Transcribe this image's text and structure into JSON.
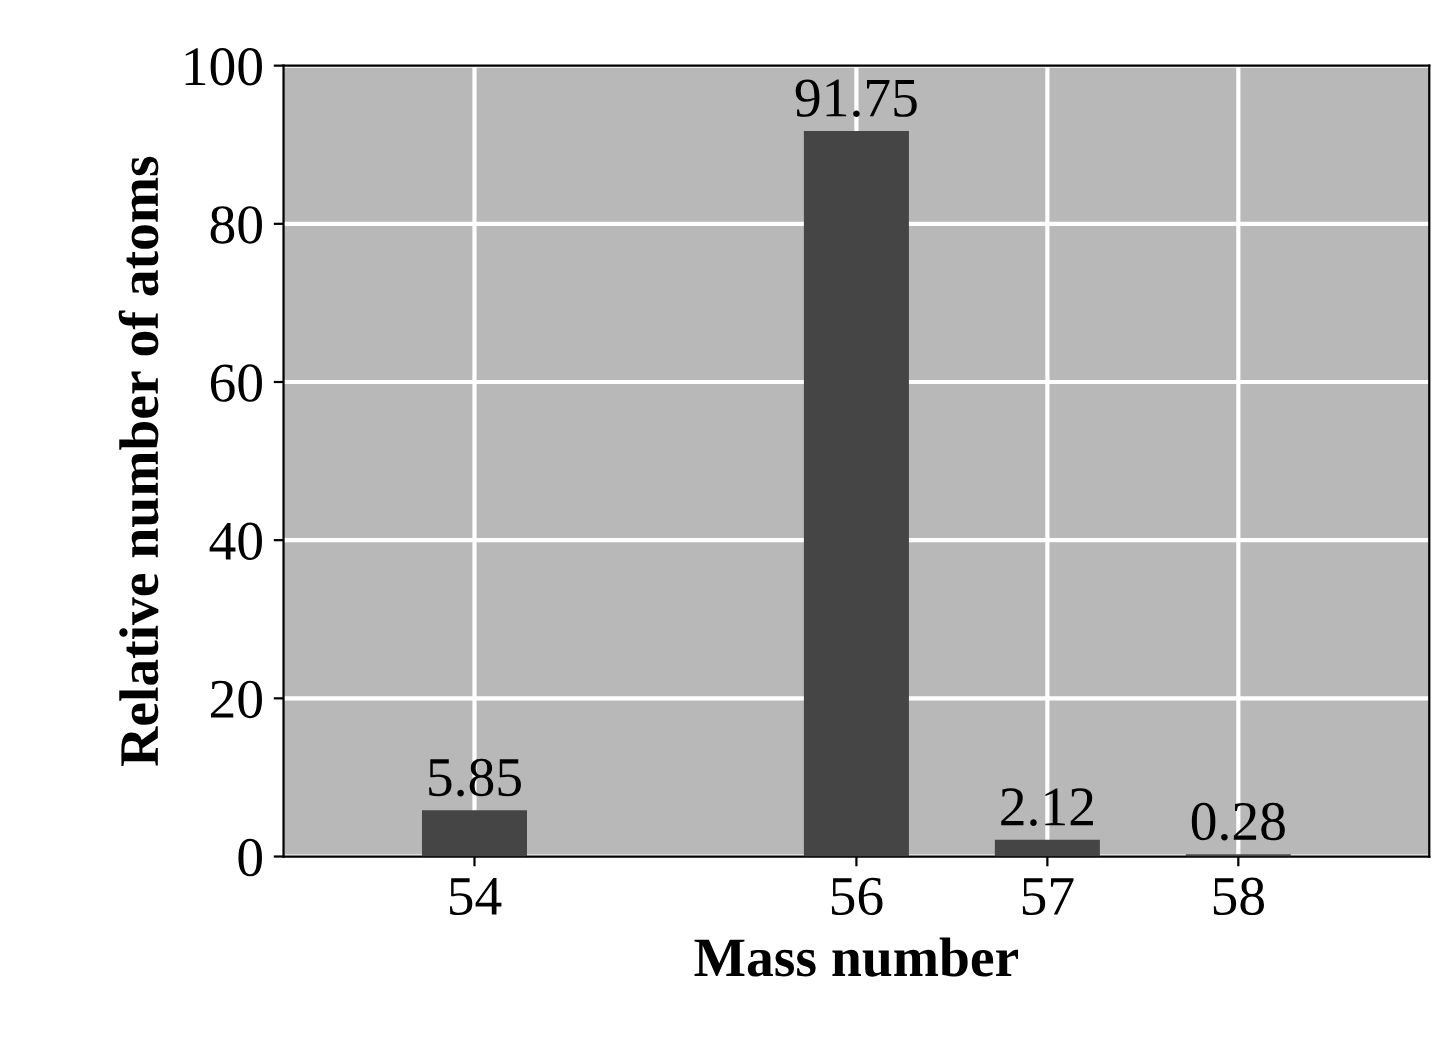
{
  "chart_data": {
    "type": "bar",
    "xlabel": "Mass number",
    "ylabel": "Relative number of atoms",
    "x": [
      54,
      56,
      57,
      58
    ],
    "values": [
      5.85,
      91.75,
      2.12,
      0.28
    ],
    "color": "#454545",
    "xlim": [
      53,
      59
    ],
    "xticks": [
      54,
      56,
      57,
      58
    ],
    "ylim": [
      0,
      100
    ],
    "yticks": [
      0,
      20,
      40,
      60,
      80,
      100
    ],
    "grid": true,
    "data_labels": true
  }
}
